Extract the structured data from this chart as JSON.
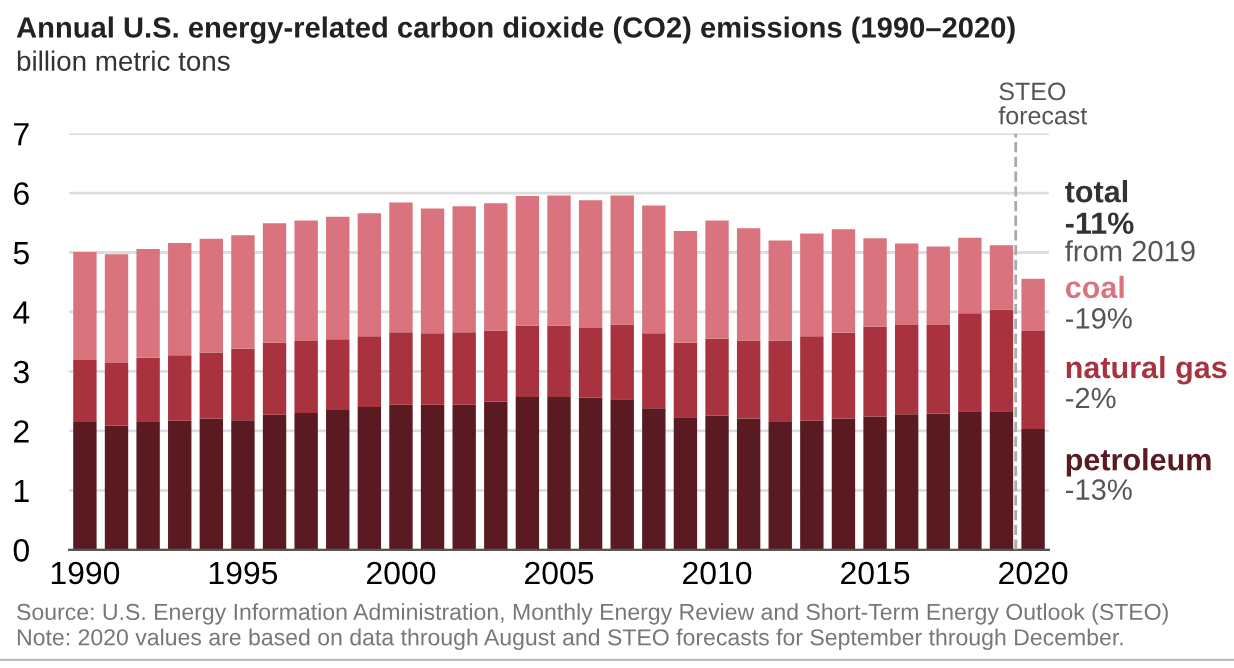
{
  "chart_data": {
    "type": "bar",
    "stacked": true,
    "title": "Annual U.S. energy-related carbon dioxide (CO2) emissions (1990–2020)",
    "ylabel": "billion metric tons",
    "x": [
      1990,
      1991,
      1992,
      1993,
      1994,
      1995,
      1996,
      1997,
      1998,
      1999,
      2000,
      2001,
      2002,
      2003,
      2004,
      2005,
      2006,
      2007,
      2008,
      2009,
      2010,
      2011,
      2012,
      2013,
      2014,
      2015,
      2016,
      2017,
      2018,
      2019,
      2020
    ],
    "xlim": [
      1989.5,
      2020.5
    ],
    "xticks": [
      1990,
      1995,
      2000,
      2005,
      2010,
      2015,
      2020
    ],
    "ylim": [
      0,
      7
    ],
    "yticks": [
      0,
      1,
      2,
      3,
      4,
      5,
      6,
      7
    ],
    "grid": "y",
    "series": [
      {
        "name": "petroleum",
        "color": "#5a1a22",
        "values": [
          2.15,
          2.09,
          2.15,
          2.17,
          2.21,
          2.18,
          2.27,
          2.3,
          2.35,
          2.4,
          2.44,
          2.44,
          2.44,
          2.49,
          2.57,
          2.57,
          2.56,
          2.53,
          2.38,
          2.23,
          2.26,
          2.21,
          2.15,
          2.17,
          2.21,
          2.24,
          2.28,
          2.29,
          2.33,
          2.33,
          2.03
        ]
      },
      {
        "name": "natural gas",
        "color": "#a8323e",
        "values": [
          1.04,
          1.05,
          1.08,
          1.1,
          1.11,
          1.2,
          1.21,
          1.21,
          1.19,
          1.19,
          1.22,
          1.2,
          1.22,
          1.2,
          1.2,
          1.2,
          1.17,
          1.26,
          1.26,
          1.25,
          1.29,
          1.31,
          1.37,
          1.42,
          1.44,
          1.51,
          1.5,
          1.49,
          1.65,
          1.71,
          1.65
        ]
      },
      {
        "name": "coal",
        "color": "#d9747f",
        "values": [
          1.82,
          1.83,
          1.83,
          1.89,
          1.91,
          1.91,
          2.01,
          2.03,
          2.06,
          2.07,
          2.18,
          2.1,
          2.12,
          2.14,
          2.18,
          2.19,
          2.15,
          2.17,
          2.15,
          1.88,
          1.99,
          1.89,
          1.68,
          1.73,
          1.74,
          1.49,
          1.37,
          1.32,
          1.27,
          1.08,
          0.88
        ]
      }
    ],
    "ref_lines": [
      {
        "axis": "x",
        "value": 2019.45,
        "label": "STEO\nforecast",
        "color": "#aaaaaa",
        "line_style": "dashed"
      }
    ],
    "annotations": [
      "total",
      "-11%",
      "from 2019",
      "-19%",
      "-2%",
      "-13%",
      "Source: U.S. Energy Information Administration, Monthly Energy Review and Short-Term Energy Outlook (STEO)",
      "Note: 2020 values are based on data through August and STEO forecasts for September through December."
    ]
  }
}
